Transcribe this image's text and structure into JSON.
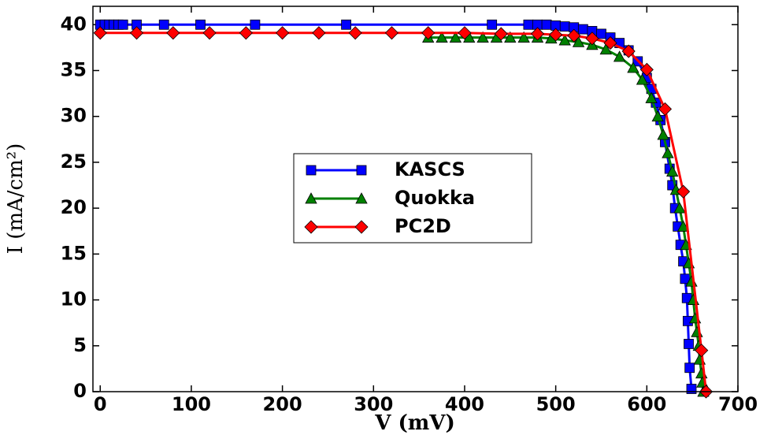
{
  "chart_data": {
    "type": "line",
    "xlabel": "V (mV)",
    "ylabel": "I (mA/cm²)",
    "xlim": [
      -8,
      700
    ],
    "ylim": [
      0,
      42
    ],
    "xticks": [
      0,
      100,
      200,
      300,
      400,
      500,
      600,
      700
    ],
    "yticks": [
      0,
      5,
      10,
      15,
      20,
      25,
      30,
      35,
      40
    ],
    "grid": false,
    "legend": "center",
    "series": [
      {
        "name": "KASCS",
        "color": "#0000ff",
        "marker": "square",
        "x": [
          0,
          5,
          10,
          15,
          20,
          25,
          40,
          70,
          110,
          170,
          270,
          430,
          470,
          480,
          490,
          500,
          510,
          520,
          530,
          540,
          550,
          560,
          570,
          580,
          590,
          600,
          605,
          610,
          615,
          620,
          625,
          628,
          631,
          634,
          637,
          640,
          642,
          644,
          645,
          646,
          647,
          649
        ],
        "values": [
          40,
          40,
          40,
          40,
          40,
          40,
          40,
          40,
          40,
          40,
          40,
          40,
          40,
          40,
          40,
          39.9,
          39.8,
          39.7,
          39.5,
          39.3,
          39,
          38.6,
          38,
          37.2,
          36,
          34.2,
          33,
          31.5,
          29.6,
          27.2,
          24.3,
          22.5,
          20,
          18,
          16,
          14.2,
          12.3,
          10.2,
          7.7,
          5.2,
          2.6,
          0.3
        ]
      },
      {
        "name": "Quokka",
        "color": "#008000",
        "marker": "triangle",
        "x": [
          360,
          375,
          390,
          405,
          420,
          435,
          450,
          465,
          480,
          495,
          510,
          525,
          540,
          555,
          570,
          585,
          595,
          605,
          612,
          618,
          623,
          628,
          632,
          636,
          640,
          643,
          646,
          649,
          651,
          653,
          655,
          657,
          658,
          660,
          661,
          662
        ],
        "values": [
          38.6,
          38.6,
          38.6,
          38.6,
          38.6,
          38.6,
          38.6,
          38.6,
          38.6,
          38.5,
          38.3,
          38.1,
          37.8,
          37.3,
          36.5,
          35.3,
          34,
          32,
          30,
          28,
          26,
          24,
          22,
          20,
          18,
          16,
          14,
          12,
          10,
          8,
          6.5,
          5,
          3.5,
          2,
          1,
          0
        ]
      },
      {
        "name": "PC2D",
        "color": "#ff0000",
        "marker": "diamond",
        "x": [
          0,
          40,
          80,
          120,
          160,
          200,
          240,
          280,
          320,
          360,
          400,
          440,
          480,
          500,
          520,
          540,
          560,
          580,
          600,
          620,
          640,
          660,
          665
        ],
        "values": [
          39.1,
          39.1,
          39.1,
          39.1,
          39.1,
          39.1,
          39.1,
          39.1,
          39.1,
          39.1,
          39.1,
          39,
          39,
          38.9,
          38.8,
          38.5,
          38,
          37.1,
          35.1,
          30.8,
          21.8,
          4.5,
          0
        ]
      }
    ]
  }
}
